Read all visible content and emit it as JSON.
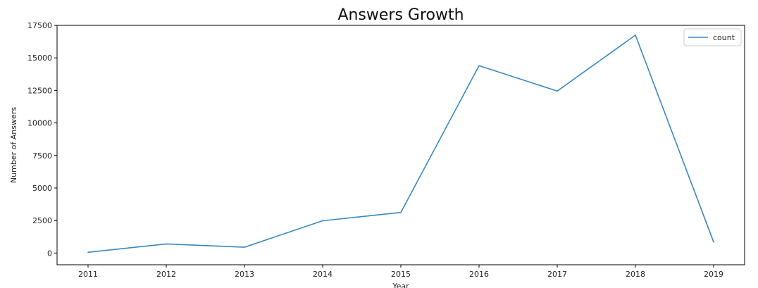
{
  "chart_data": {
    "type": "line",
    "title": "Answers Growth",
    "xlabel": "Year",
    "ylabel": "Number of Answers",
    "x": [
      "2011",
      "2012",
      "2013",
      "2014",
      "2015",
      "2016",
      "2017",
      "2018",
      "2019"
    ],
    "series": [
      {
        "name": "count",
        "values": [
          60,
          700,
          450,
          2480,
          3120,
          14400,
          12450,
          16750,
          850
        ],
        "color": "#3a87c0"
      }
    ],
    "yticks": [
      "0",
      "2500",
      "5000",
      "7500",
      "10000",
      "12500",
      "15000",
      "17500"
    ],
    "ylim": [
      -900,
      17500
    ],
    "grid": false,
    "legend": "top-right"
  }
}
